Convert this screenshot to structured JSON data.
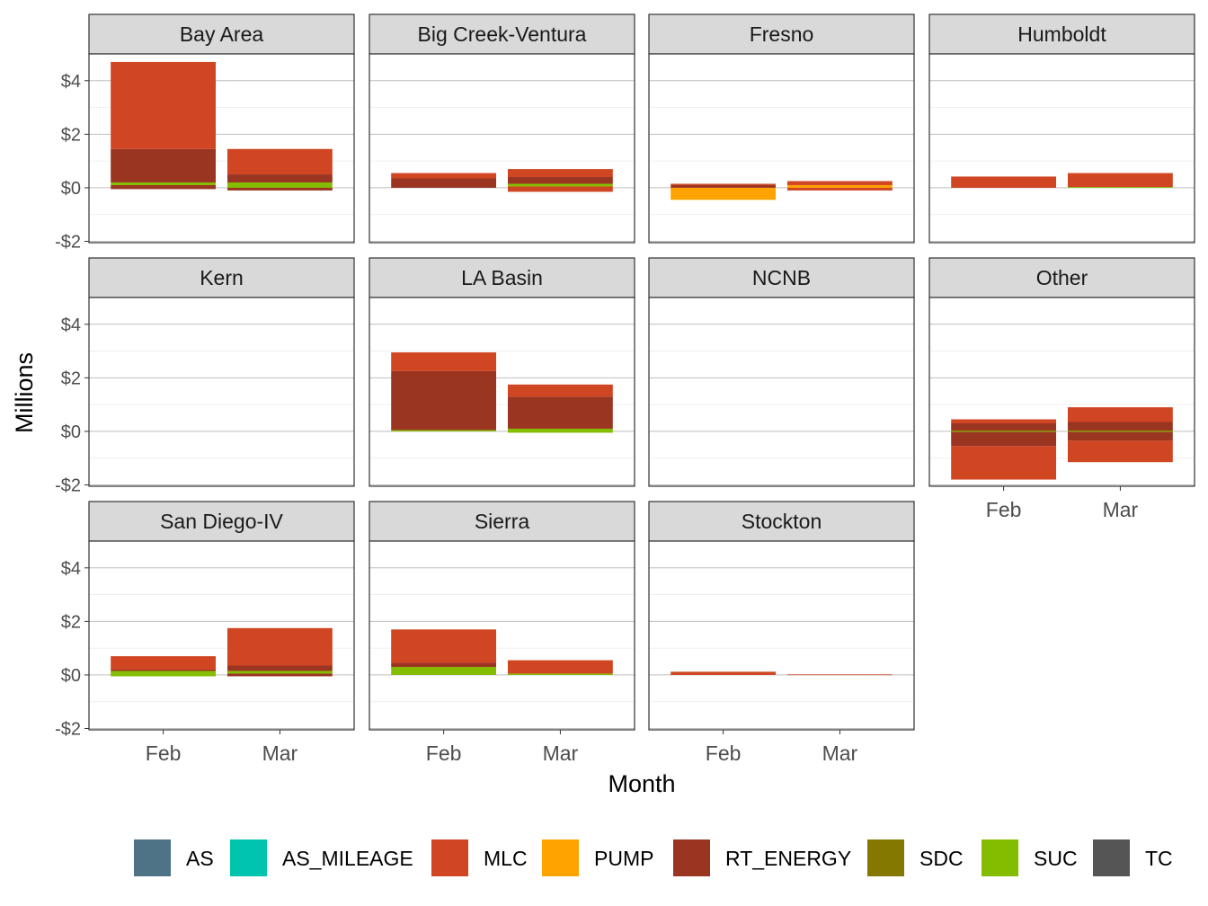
{
  "chart_data": {
    "type": "bar",
    "stacked": true,
    "faceted": true,
    "xlabel": "Month",
    "ylabel": "Millions",
    "y_tick_labels": [
      "-$2",
      "$0",
      "$2",
      "$4"
    ],
    "y_ticks": [
      -2,
      0,
      2,
      4
    ],
    "ylim": [
      -2.05,
      5.0
    ],
    "categories": [
      "Feb",
      "Mar"
    ],
    "grid": true,
    "legend_position": "bottom",
    "legend": [
      {
        "name": "AS",
        "color": "#4E7286"
      },
      {
        "name": "AS_MILEAGE",
        "color": "#00C4AE"
      },
      {
        "name": "MLC",
        "color": "#D04522"
      },
      {
        "name": "PUMP",
        "color": "#FFA300"
      },
      {
        "name": "RT_ENERGY",
        "color": "#9A3522"
      },
      {
        "name": "SDC",
        "color": "#857800"
      },
      {
        "name": "SUC",
        "color": "#84BD00"
      },
      {
        "name": "TC",
        "color": "#555555"
      }
    ],
    "panels": [
      {
        "title": "Bay Area",
        "bars": [
          {
            "category": "Feb",
            "segments": [
              {
                "series": "SUC",
                "low": 0.1,
                "high": 0.2
              },
              {
                "series": "RT_ENERGY",
                "low": 0.2,
                "high": 1.45
              },
              {
                "series": "MLC",
                "low": 1.45,
                "high": 4.7
              },
              {
                "series": "RT_ENERGY",
                "low": -0.05,
                "high": 0.1
              }
            ]
          },
          {
            "category": "Mar",
            "segments": [
              {
                "series": "SUC",
                "low": 0.0,
                "high": 0.2
              },
              {
                "series": "RT_ENERGY",
                "low": 0.2,
                "high": 0.5
              },
              {
                "series": "MLC",
                "low": 0.5,
                "high": 1.45
              },
              {
                "series": "RT_ENERGY",
                "low": -0.1,
                "high": 0.0
              }
            ]
          }
        ]
      },
      {
        "title": "Big Creek-Ventura",
        "bars": [
          {
            "category": "Feb",
            "segments": [
              {
                "series": "RT_ENERGY",
                "low": 0.0,
                "high": 0.35
              },
              {
                "series": "MLC",
                "low": 0.35,
                "high": 0.55
              }
            ]
          },
          {
            "category": "Mar",
            "segments": [
              {
                "series": "SUC",
                "low": 0.05,
                "high": 0.15
              },
              {
                "series": "RT_ENERGY",
                "low": 0.15,
                "high": 0.4
              },
              {
                "series": "MLC",
                "low": 0.4,
                "high": 0.7
              },
              {
                "series": "MLC",
                "low": -0.15,
                "high": 0.05
              }
            ]
          }
        ]
      },
      {
        "title": "Fresno",
        "bars": [
          {
            "category": "Feb",
            "segments": [
              {
                "series": "RT_ENERGY",
                "low": 0.0,
                "high": 0.1
              },
              {
                "series": "MLC",
                "low": 0.1,
                "high": 0.15
              },
              {
                "series": "PUMP",
                "low": -0.45,
                "high": 0.0
              }
            ]
          },
          {
            "category": "Mar",
            "segments": [
              {
                "series": "PUMP",
                "low": 0.0,
                "high": 0.1
              },
              {
                "series": "MLC",
                "low": 0.1,
                "high": 0.25
              },
              {
                "series": "MLC",
                "low": -0.1,
                "high": 0.0
              }
            ]
          }
        ]
      },
      {
        "title": "Humboldt",
        "bars": [
          {
            "category": "Feb",
            "segments": [
              {
                "series": "MLC",
                "low": 0.0,
                "high": 0.42
              }
            ]
          },
          {
            "category": "Mar",
            "segments": [
              {
                "series": "SUC",
                "low": 0.0,
                "high": 0.03
              },
              {
                "series": "MLC",
                "low": 0.03,
                "high": 0.55
              }
            ]
          }
        ]
      },
      {
        "title": "Kern",
        "bars": []
      },
      {
        "title": "LA Basin",
        "bars": [
          {
            "category": "Feb",
            "segments": [
              {
                "series": "SUC",
                "low": 0.0,
                "high": 0.05
              },
              {
                "series": "RT_ENERGY",
                "low": 0.05,
                "high": 2.25
              },
              {
                "series": "MLC",
                "low": 2.25,
                "high": 2.95
              }
            ]
          },
          {
            "category": "Mar",
            "segments": [
              {
                "series": "SUC",
                "low": -0.05,
                "high": 0.1
              },
              {
                "series": "RT_ENERGY",
                "low": 0.1,
                "high": 1.3
              },
              {
                "series": "MLC",
                "low": 1.3,
                "high": 1.75
              }
            ]
          }
        ]
      },
      {
        "title": "NCNB",
        "bars": []
      },
      {
        "title": "Other",
        "bars": [
          {
            "category": "Feb",
            "segments": [
              {
                "series": "RT_ENERGY",
                "low": 0.0,
                "high": 0.3
              },
              {
                "series": "MLC",
                "low": 0.3,
                "high": 0.45
              },
              {
                "series": "RT_ENERGY",
                "low": -0.55,
                "high": 0.0
              },
              {
                "series": "MLC",
                "low": -1.8,
                "high": -0.55
              },
              {
                "series": "SUC",
                "low": -0.02,
                "high": 0.02
              }
            ]
          },
          {
            "category": "Mar",
            "segments": [
              {
                "series": "RT_ENERGY",
                "low": 0.0,
                "high": 0.35
              },
              {
                "series": "MLC",
                "low": 0.35,
                "high": 0.9
              },
              {
                "series": "RT_ENERGY",
                "low": -0.35,
                "high": 0.0
              },
              {
                "series": "MLC",
                "low": -1.15,
                "high": -0.35
              },
              {
                "series": "SUC",
                "low": -0.02,
                "high": 0.02
              }
            ]
          }
        ]
      },
      {
        "title": "San Diego-IV",
        "bars": [
          {
            "category": "Feb",
            "segments": [
              {
                "series": "SUC",
                "low": 0.05,
                "high": 0.15
              },
              {
                "series": "RT_ENERGY",
                "low": 0.15,
                "high": 0.2
              },
              {
                "series": "MLC",
                "low": 0.2,
                "high": 0.7
              },
              {
                "series": "SUC",
                "low": -0.05,
                "high": 0.05
              }
            ]
          },
          {
            "category": "Mar",
            "segments": [
              {
                "series": "SUC",
                "low": 0.05,
                "high": 0.15
              },
              {
                "series": "RT_ENERGY",
                "low": 0.15,
                "high": 0.35
              },
              {
                "series": "MLC",
                "low": 0.35,
                "high": 1.75
              },
              {
                "series": "RT_ENERGY",
                "low": -0.05,
                "high": 0.05
              }
            ]
          }
        ]
      },
      {
        "title": "Sierra",
        "bars": [
          {
            "category": "Feb",
            "segments": [
              {
                "series": "SUC",
                "low": 0.0,
                "high": 0.3
              },
              {
                "series": "RT_ENERGY",
                "low": 0.3,
                "high": 0.45
              },
              {
                "series": "MLC",
                "low": 0.45,
                "high": 1.7
              }
            ]
          },
          {
            "category": "Mar",
            "segments": [
              {
                "series": "SUC",
                "low": 0.0,
                "high": 0.05
              },
              {
                "series": "MLC",
                "low": 0.05,
                "high": 0.55
              }
            ]
          }
        ]
      },
      {
        "title": "Stockton",
        "bars": [
          {
            "category": "Feb",
            "segments": [
              {
                "series": "MLC",
                "low": 0.0,
                "high": 0.12
              }
            ]
          },
          {
            "category": "Mar",
            "segments": [
              {
                "series": "MLC",
                "low": 0.0,
                "high": 0.02
              }
            ]
          }
        ]
      }
    ]
  }
}
